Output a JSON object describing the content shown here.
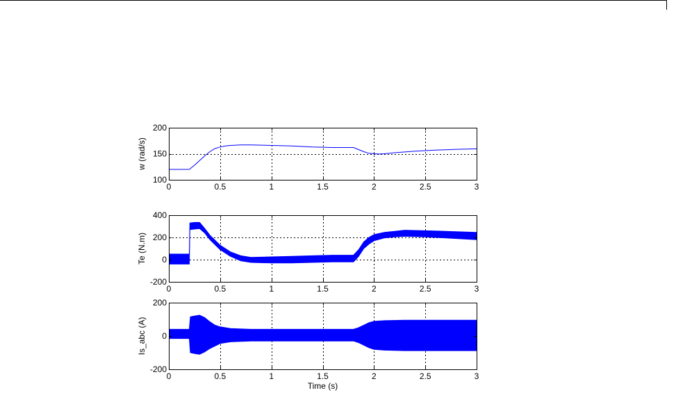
{
  "chart_data": [
    {
      "type": "line",
      "title": "",
      "xlabel": "",
      "ylabel": "w (rad/s)",
      "xlim": [
        0,
        3
      ],
      "ylim": [
        100,
        200
      ],
      "xticks": [
        0,
        0.5,
        1,
        1.5,
        2,
        2.5,
        3
      ],
      "xtick_labels": [
        "0",
        "0.5",
        "1",
        "1.5",
        "2",
        "2.5",
        "3"
      ],
      "yticks": [
        100,
        150,
        200
      ],
      "ytick_labels": [
        "100",
        "150",
        "200"
      ],
      "grid": true,
      "series": [
        {
          "color": "#0000ff",
          "style": "line",
          "x": [
            0,
            0.2,
            0.25,
            0.3,
            0.35,
            0.4,
            0.45,
            0.5,
            0.55,
            0.6,
            0.7,
            0.8,
            1.0,
            1.2,
            1.4,
            1.6,
            1.8,
            1.85,
            1.9,
            1.95,
            2.0,
            2.05,
            2.1,
            2.2,
            2.4,
            2.6,
            2.8,
            3.0
          ],
          "y": [
            120,
            120,
            128,
            137,
            146,
            154,
            160,
            163,
            165,
            166,
            167,
            167,
            166,
            165,
            163,
            162,
            162,
            158,
            154,
            151,
            150,
            149.5,
            150,
            152,
            155,
            157,
            158.5,
            159.5
          ]
        }
      ]
    },
    {
      "type": "line",
      "title": "",
      "xlabel": "",
      "ylabel": "Te (N.m)",
      "xlim": [
        0,
        3
      ],
      "ylim": [
        -200,
        400
      ],
      "xticks": [
        0,
        0.5,
        1,
        1.5,
        2,
        2.5,
        3
      ],
      "xtick_labels": [
        "0",
        "0.5",
        "1",
        "1.5",
        "2",
        "2.5",
        "3"
      ],
      "yticks": [
        -200,
        0,
        200,
        400
      ],
      "ytick_labels": [
        "-200",
        "0",
        "200",
        "400"
      ],
      "grid": true,
      "series": [
        {
          "color": "#0000ff",
          "style": "band",
          "x": [
            0,
            0.2,
            0.205,
            0.25,
            0.3,
            0.35,
            0.4,
            0.5,
            0.6,
            0.7,
            0.8,
            1.0,
            1.2,
            1.4,
            1.6,
            1.8,
            1.85,
            1.9,
            1.95,
            2.0,
            2.1,
            2.2,
            2.3,
            2.5,
            2.7,
            3.0
          ],
          "ymin": [
            -40,
            -40,
            270,
            275,
            280,
            240,
            180,
            90,
            30,
            -10,
            -25,
            -30,
            -30,
            -25,
            -20,
            -20,
            30,
            100,
            140,
            170,
            195,
            205,
            210,
            205,
            195,
            180
          ],
          "ymax": [
            50,
            50,
            330,
            335,
            335,
            280,
            220,
            130,
            70,
            35,
            20,
            25,
            30,
            35,
            40,
            40,
            90,
            160,
            200,
            225,
            245,
            255,
            265,
            260,
            255,
            245
          ]
        }
      ]
    },
    {
      "type": "line",
      "title": "",
      "xlabel": "Time (s)",
      "ylabel": "Is_abc (A)",
      "xlim": [
        0,
        3
      ],
      "ylim": [
        -200,
        200
      ],
      "xticks": [
        0,
        0.5,
        1,
        1.5,
        2,
        2.5,
        3
      ],
      "xtick_labels": [
        "0",
        "0.5",
        "1",
        "1.5",
        "2",
        "2.5",
        "3"
      ],
      "yticks": [
        -200,
        0,
        200
      ],
      "ytick_labels": [
        "-200",
        "0",
        "200"
      ],
      "grid": true,
      "series": [
        {
          "color": "#0000ff",
          "style": "band",
          "x": [
            0,
            0.2,
            0.21,
            0.25,
            0.3,
            0.35,
            0.4,
            0.45,
            0.5,
            0.6,
            0.8,
            1.0,
            1.5,
            1.8,
            1.85,
            1.9,
            1.95,
            2.0,
            2.1,
            2.3,
            2.5,
            3.0
          ],
          "ymin": [
            -15,
            -15,
            -100,
            -105,
            -110,
            -95,
            -75,
            -60,
            -45,
            -35,
            -30,
            -30,
            -30,
            -30,
            -40,
            -55,
            -70,
            -80,
            -85,
            -88,
            -88,
            -88
          ],
          "ymax": [
            40,
            40,
            115,
            120,
            125,
            110,
            85,
            65,
            55,
            45,
            40,
            40,
            40,
            40,
            50,
            65,
            80,
            88,
            92,
            95,
            95,
            95
          ]
        }
      ]
    }
  ]
}
